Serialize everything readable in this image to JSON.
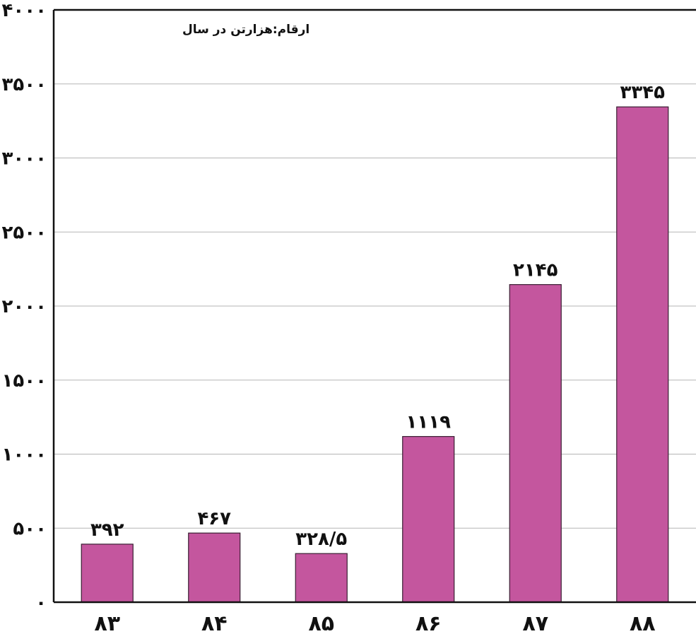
{
  "chart_data": {
    "type": "bar",
    "categories": [
      "۸۳",
      "۸۴",
      "۸۵",
      "۸۶",
      "۸۷",
      "۸۸"
    ],
    "values": [
      392,
      467,
      328.5,
      1119,
      2145,
      3345
    ],
    "value_labels": [
      "۳۹۲",
      "۴۶۷",
      "۳۲۸/۵",
      "۱۱۱۹",
      "۲۱۴۵",
      "۳۳۴۵"
    ],
    "ylim": [
      0,
      4000
    ],
    "yticks": [
      0,
      500,
      1000,
      1500,
      2000,
      2500,
      3000,
      3500,
      4000
    ],
    "ytick_labels": [
      "۰",
      "۵۰۰",
      "۱۰۰۰",
      "۱۵۰۰",
      "۲۰۰۰",
      "۲۵۰۰",
      "۳۰۰۰",
      "۳۵۰۰",
      "۴۰۰۰"
    ],
    "unit_note": "ارقام:هزارتن در سال",
    "grid": true,
    "colors": {
      "bar": "#c4569e",
      "bar_edge": "#3a1f33",
      "grid": "#b5b5b5",
      "axis": "#111111"
    }
  }
}
